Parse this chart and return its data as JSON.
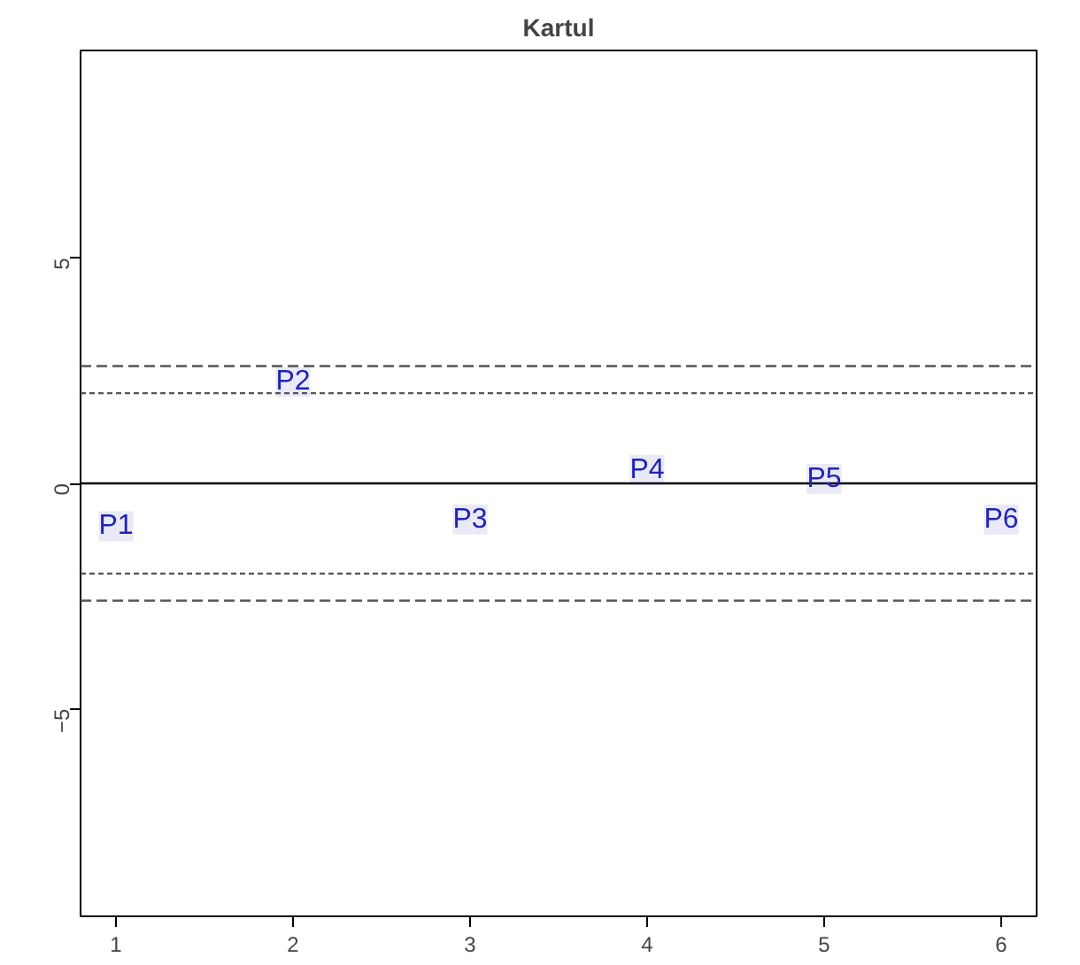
{
  "chart_data": {
    "type": "scatter",
    "title": "Kartul",
    "x": [
      1,
      2,
      3,
      4,
      5,
      6
    ],
    "values": [
      -0.95,
      2.25,
      -0.8,
      0.3,
      0.1,
      -0.8
    ],
    "value_labels": [
      "P1",
      "P2",
      "P3",
      "P4",
      "P5",
      "P6"
    ],
    "color": "#2323b4",
    "marker": "square",
    "xlim": [
      0.8,
      6.2
    ],
    "ylim": [
      -9.6,
      9.6
    ],
    "xticks": [
      1,
      2,
      3,
      4,
      5,
      6
    ],
    "yticks": [
      -5,
      0,
      5
    ],
    "ref_lines": [
      {
        "axis": "y",
        "value": 0,
        "line_style": "solid",
        "color": "#000000"
      },
      {
        "axis": "y",
        "value": 2,
        "line_style": "dotted",
        "color": "#555555"
      },
      {
        "axis": "y",
        "value": -2,
        "line_style": "dotted",
        "color": "#555555"
      },
      {
        "axis": "y",
        "value": 2.6,
        "line_style": "dashed",
        "color": "#555555"
      },
      {
        "axis": "y",
        "value": -2.6,
        "line_style": "dashed",
        "color": "#555555"
      }
    ]
  }
}
